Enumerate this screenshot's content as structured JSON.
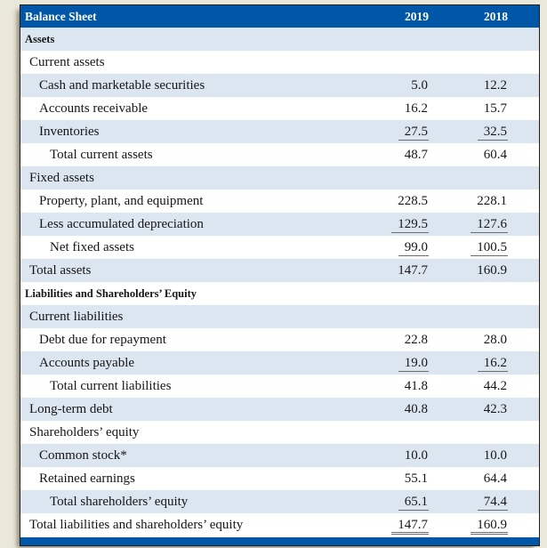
{
  "title": "Balance Sheet",
  "colors": {
    "header_bg": "#0057a7",
    "row_shade": "#dce6f1",
    "page_bg": "#eae7db",
    "underline": "#6d6d6d",
    "border": "#1f1f1f"
  },
  "header": {
    "title": "Balance Sheet",
    "col_2019": "2019",
    "col_2018": "2018"
  },
  "rows": [
    {
      "label": "Assets",
      "v2019": "",
      "v2018": "",
      "indent": 0,
      "bold": true,
      "shade": true,
      "underline": "none"
    },
    {
      "label": "Current assets",
      "v2019": "",
      "v2018": "",
      "indent": 1,
      "bold": false,
      "shade": false,
      "underline": "none"
    },
    {
      "label": "Cash and marketable securities",
      "v2019": "5.0",
      "v2018": "12.2",
      "indent": 2,
      "bold": false,
      "shade": true,
      "underline": "none"
    },
    {
      "label": "Accounts receivable",
      "v2019": "16.2",
      "v2018": "15.7",
      "indent": 2,
      "bold": false,
      "shade": false,
      "underline": "none"
    },
    {
      "label": "Inventories",
      "v2019": "27.5",
      "v2018": "32.5",
      "indent": 2,
      "bold": false,
      "shade": true,
      "underline": "single"
    },
    {
      "label": "Total current assets",
      "v2019": "48.7",
      "v2018": "60.4",
      "indent": 3,
      "bold": false,
      "shade": false,
      "underline": "none"
    },
    {
      "label": "Fixed assets",
      "v2019": "",
      "v2018": "",
      "indent": 1,
      "bold": false,
      "shade": true,
      "underline": "none"
    },
    {
      "label": "Property, plant, and equipment",
      "v2019": "228.5",
      "v2018": "228.1",
      "indent": 2,
      "bold": false,
      "shade": false,
      "underline": "none"
    },
    {
      "label": "Less accumulated depreciation",
      "v2019": "129.5",
      "v2018": "127.6",
      "indent": 2,
      "bold": false,
      "shade": true,
      "underline": "single"
    },
    {
      "label": "Net fixed assets",
      "v2019": "99.0",
      "v2018": "100.5",
      "indent": 3,
      "bold": false,
      "shade": false,
      "underline": "single"
    },
    {
      "label": "Total assets",
      "v2019": "147.7",
      "v2018": "160.9",
      "indent": 1,
      "bold": false,
      "shade": true,
      "underline": "none"
    },
    {
      "label": "Liabilities and Shareholders’ Equity",
      "v2019": "",
      "v2018": "",
      "indent": 0,
      "bold": true,
      "shade": false,
      "underline": "none"
    },
    {
      "label": "Current liabilities",
      "v2019": "",
      "v2018": "",
      "indent": 1,
      "bold": false,
      "shade": true,
      "underline": "none"
    },
    {
      "label": "Debt due for repayment",
      "v2019": "22.8",
      "v2018": "28.0",
      "indent": 2,
      "bold": false,
      "shade": false,
      "underline": "none"
    },
    {
      "label": "Accounts payable",
      "v2019": "19.0",
      "v2018": "16.2",
      "indent": 2,
      "bold": false,
      "shade": true,
      "underline": "single"
    },
    {
      "label": "Total current liabilities",
      "v2019": "41.8",
      "v2018": "44.2",
      "indent": 3,
      "bold": false,
      "shade": false,
      "underline": "none"
    },
    {
      "label": "Long-term debt",
      "v2019": "40.8",
      "v2018": "42.3",
      "indent": 1,
      "bold": false,
      "shade": true,
      "underline": "none"
    },
    {
      "label": "Shareholders’ equity",
      "v2019": "",
      "v2018": "",
      "indent": 1,
      "bold": false,
      "shade": false,
      "underline": "none"
    },
    {
      "label": "Common stock*",
      "v2019": "10.0",
      "v2018": "10.0",
      "indent": 2,
      "bold": false,
      "shade": true,
      "underline": "none"
    },
    {
      "label": "Retained earnings",
      "v2019": "55.1",
      "v2018": "64.4",
      "indent": 2,
      "bold": false,
      "shade": false,
      "underline": "none"
    },
    {
      "label": "Total shareholders’ equity",
      "v2019": "65.1",
      "v2018": "74.4",
      "indent": 3,
      "bold": false,
      "shade": true,
      "underline": "single"
    },
    {
      "label": "Total liabilities and shareholders’ equity",
      "v2019": "147.7",
      "v2018": "160.9",
      "indent": 1,
      "bold": false,
      "shade": false,
      "underline": "double"
    }
  ]
}
